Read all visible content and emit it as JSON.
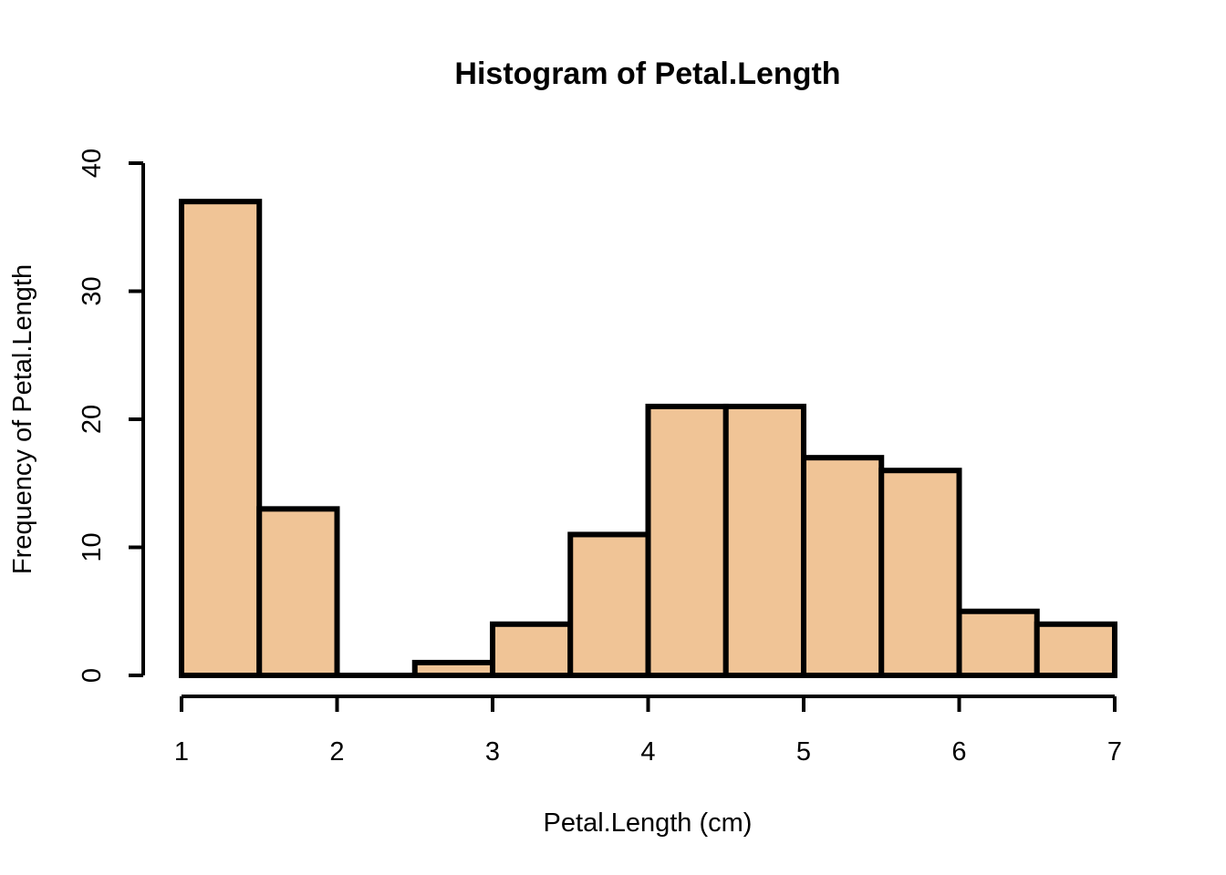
{
  "chart_data": {
    "type": "bar",
    "title": "Histogram of Petal.Length",
    "xlabel": "Petal.Length (cm)",
    "ylabel": "Frequency of Petal.Length",
    "bins": [
      {
        "start": 1.0,
        "end": 1.5,
        "count": 37
      },
      {
        "start": 1.5,
        "end": 2.0,
        "count": 13
      },
      {
        "start": 2.0,
        "end": 2.5,
        "count": 0
      },
      {
        "start": 2.5,
        "end": 3.0,
        "count": 1
      },
      {
        "start": 3.0,
        "end": 3.5,
        "count": 4
      },
      {
        "start": 3.5,
        "end": 4.0,
        "count": 11
      },
      {
        "start": 4.0,
        "end": 4.5,
        "count": 21
      },
      {
        "start": 4.5,
        "end": 5.0,
        "count": 21
      },
      {
        "start": 5.0,
        "end": 5.5,
        "count": 17
      },
      {
        "start": 5.5,
        "end": 6.0,
        "count": 16
      },
      {
        "start": 6.0,
        "end": 6.5,
        "count": 5
      },
      {
        "start": 6.5,
        "end": 7.0,
        "count": 4
      }
    ],
    "xlim": [
      1,
      7
    ],
    "ylim": [
      0,
      40
    ],
    "x_ticks": [
      "1",
      "2",
      "3",
      "4",
      "5",
      "6",
      "7"
    ],
    "y_ticks": [
      "0",
      "10",
      "20",
      "30",
      "40"
    ],
    "grid": false,
    "legend": "none",
    "bar_color": "#F0C496",
    "edge_color": "#000000"
  }
}
